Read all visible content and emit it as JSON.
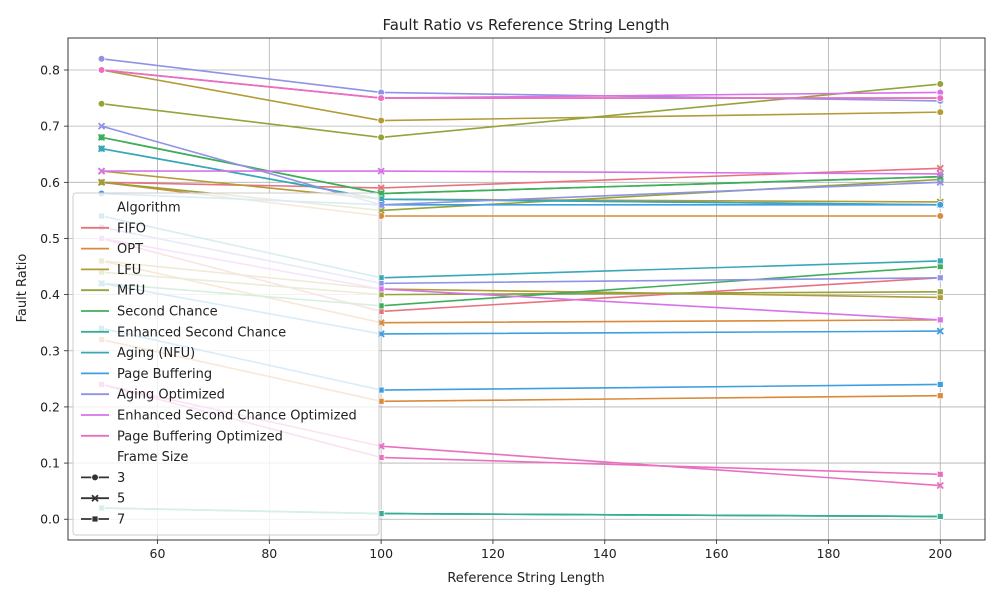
{
  "chart_data": {
    "type": "line",
    "title": "Fault Ratio vs Reference String Length",
    "xlabel": "Reference String Length",
    "ylabel": "Fault Ratio",
    "xlim": [
      44,
      208
    ],
    "ylim": [
      -0.037,
      0.857
    ],
    "xticks": [
      60,
      80,
      100,
      120,
      140,
      160,
      180,
      200
    ],
    "yticks": [
      0.0,
      0.1,
      0.2,
      0.3,
      0.4,
      0.5,
      0.6,
      0.7,
      0.8
    ],
    "grid": true,
    "legend_placement": "lower-left",
    "x": [
      50,
      100,
      200
    ],
    "legend": {
      "hue_title": "Algorithm",
      "style_title": "Frame Size",
      "frame_sizes": [
        {
          "label": "3",
          "marker": "circle"
        },
        {
          "label": "5",
          "marker": "x"
        },
        {
          "label": "7",
          "marker": "square"
        }
      ]
    },
    "series": [
      {
        "name": "FIFO",
        "color": "#e8737f",
        "frames": {
          "3": [
            0.8,
            0.75,
            0.75
          ],
          "5": [
            0.6,
            0.59,
            0.625
          ],
          "7": [
            0.5,
            0.37,
            0.43
          ]
        }
      },
      {
        "name": "OPT",
        "color": "#d98a3a",
        "frames": {
          "3": [
            0.6,
            0.54,
            0.54
          ],
          "5": [
            0.46,
            0.35,
            0.355
          ],
          "7": [
            0.32,
            0.21,
            0.22
          ]
        }
      },
      {
        "name": "LFU",
        "color": "#b39b38",
        "frames": {
          "3": [
            0.8,
            0.71,
            0.725
          ],
          "5": [
            0.62,
            0.57,
            0.565
          ],
          "7": [
            0.46,
            0.41,
            0.395
          ]
        }
      },
      {
        "name": "MFU",
        "color": "#94a33a",
        "frames": {
          "3": [
            0.74,
            0.68,
            0.775
          ],
          "5": [
            0.6,
            0.55,
            0.605
          ],
          "7": [
            0.44,
            0.4,
            0.405
          ]
        }
      },
      {
        "name": "Second Chance",
        "color": "#3fae5b",
        "frames": {
          "3": [
            0.68,
            0.58,
            0.61
          ],
          "5": [
            0.68,
            0.58,
            0.61
          ],
          "7": [
            0.42,
            0.38,
            0.45
          ]
        }
      },
      {
        "name": "Enhanced Second Chance",
        "color": "#36ae95",
        "frames": {
          "3": [
            0.02,
            0.01,
            0.005
          ],
          "5": [
            0.02,
            0.01,
            0.005
          ],
          "7": [
            0.02,
            0.01,
            0.005
          ]
        }
      },
      {
        "name": "Aging (NFU)",
        "color": "#38a8b8",
        "frames": {
          "3": [
            0.66,
            0.57,
            0.56
          ],
          "5": [
            0.66,
            0.57,
            0.56
          ],
          "7": [
            0.54,
            0.43,
            0.46
          ]
        }
      },
      {
        "name": "Page Buffering",
        "color": "#3d9ee0",
        "frames": {
          "3": [
            0.58,
            0.56,
            0.56
          ],
          "5": [
            0.42,
            0.33,
            0.335
          ],
          "7": [
            0.34,
            0.23,
            0.24
          ]
        }
      },
      {
        "name": "Aging Optimized",
        "color": "#8f92e6",
        "frames": {
          "3": [
            0.82,
            0.76,
            0.745
          ],
          "5": [
            0.7,
            0.56,
            0.6
          ],
          "7": [
            0.52,
            0.42,
            0.43
          ]
        }
      },
      {
        "name": "Enhanced Second Chance Optimized",
        "color": "#d673e8",
        "frames": {
          "3": [
            0.8,
            0.75,
            0.76
          ],
          "5": [
            0.62,
            0.62,
            0.615
          ],
          "7": [
            0.5,
            0.41,
            0.355
          ]
        }
      },
      {
        "name": "Page Buffering Optimized",
        "color": "#ea6fc0",
        "frames": {
          "3": [
            0.8,
            0.75,
            0.75
          ],
          "5": [
            0.24,
            0.13,
            0.06
          ],
          "7": [
            0.24,
            0.11,
            0.08
          ]
        }
      }
    ]
  }
}
